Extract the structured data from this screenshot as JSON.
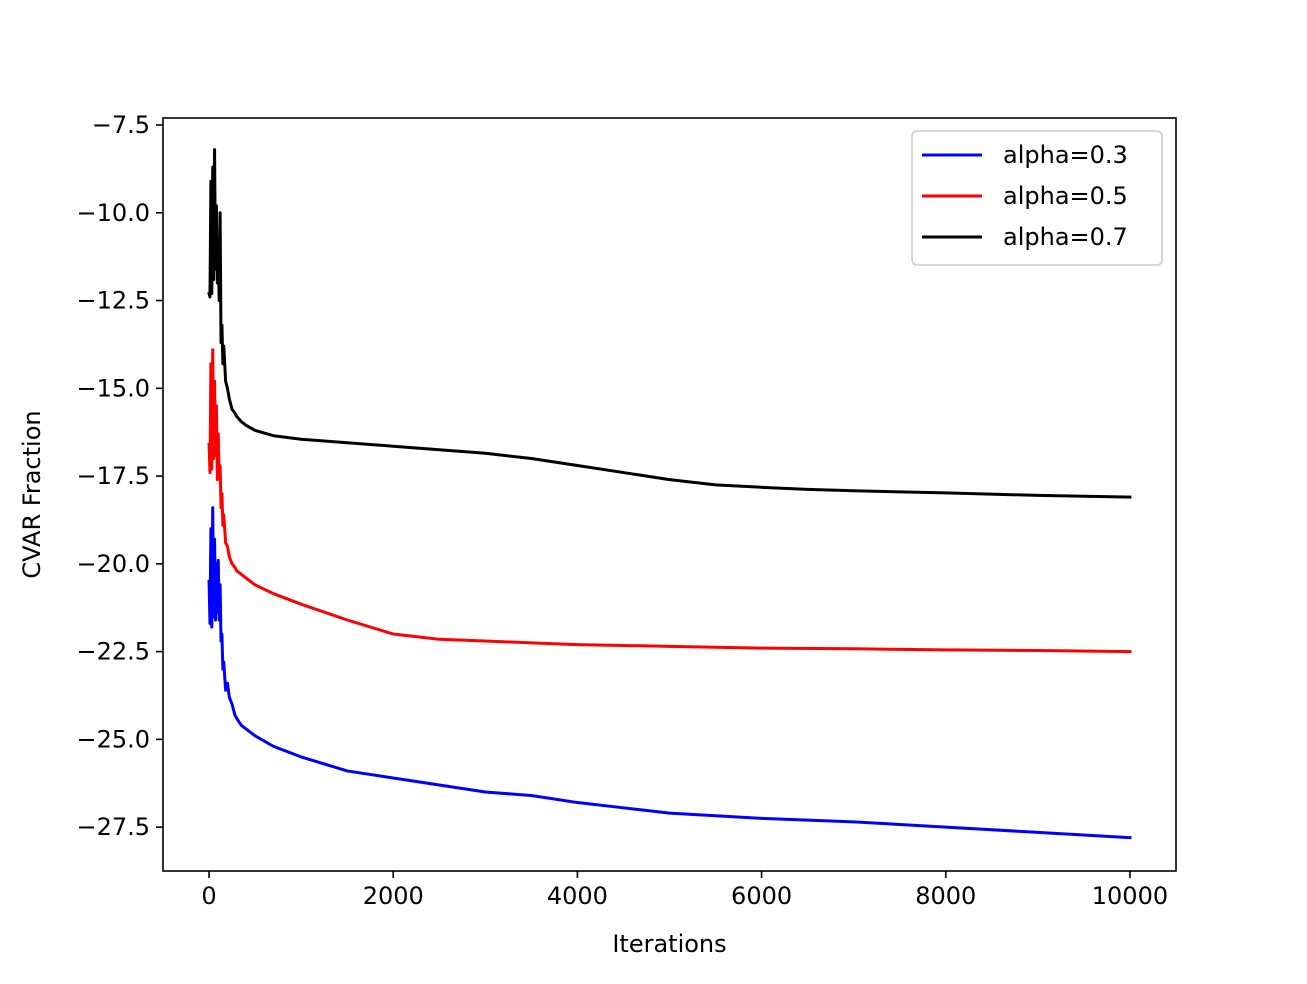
{
  "chart_data": {
    "type": "line",
    "title": "",
    "xlabel": "Iterations",
    "ylabel": "CVAR Fraction",
    "xlim": [
      -500,
      10500
    ],
    "ylim": [
      -28.75,
      -7.3
    ],
    "xticks": [
      0,
      2000,
      4000,
      6000,
      8000,
      10000
    ],
    "xtick_labels": [
      "0",
      "2000",
      "4000",
      "6000",
      "8000",
      "10000"
    ],
    "yticks": [
      -7.5,
      -10.0,
      -12.5,
      -15.0,
      -17.5,
      -20.0,
      -22.5,
      -25.0,
      -27.5
    ],
    "ytick_labels": [
      "−7.5",
      "−10.0",
      "−12.5",
      "−15.0",
      "−17.5",
      "−20.0",
      "−22.5",
      "−25.0",
      "−27.5"
    ],
    "grid": false,
    "legend_position": "top-right",
    "series": [
      {
        "name": "alpha=0.3",
        "color": "#0000ff",
        "x": [
          0,
          10,
          20,
          30,
          40,
          50,
          60,
          70,
          80,
          90,
          100,
          110,
          120,
          130,
          140,
          150,
          160,
          180,
          200,
          220,
          250,
          280,
          300,
          350,
          400,
          500,
          700,
          1000,
          1500,
          2000,
          2500,
          3000,
          3500,
          4000,
          4500,
          5000,
          6000,
          7000,
          8000,
          9000,
          10000
        ],
        "y": [
          -20.5,
          -21.7,
          -19.0,
          -21.8,
          -18.4,
          -21.5,
          -19.3,
          -21.6,
          -20.0,
          -21.4,
          -19.9,
          -21.6,
          -20.6,
          -22.2,
          -22.0,
          -23.0,
          -22.8,
          -23.6,
          -23.4,
          -23.8,
          -24.0,
          -24.3,
          -24.4,
          -24.6,
          -24.7,
          -24.9,
          -25.2,
          -25.5,
          -25.9,
          -26.1,
          -26.3,
          -26.5,
          -26.6,
          -26.8,
          -26.95,
          -27.1,
          -27.25,
          -27.35,
          -27.5,
          -27.65,
          -27.8
        ]
      },
      {
        "name": "alpha=0.5",
        "color": "#ff0000",
        "x": [
          0,
          10,
          20,
          30,
          40,
          50,
          60,
          70,
          80,
          90,
          100,
          110,
          120,
          130,
          140,
          150,
          160,
          180,
          200,
          220,
          250,
          280,
          300,
          350,
          400,
          500,
          700,
          1000,
          1500,
          2000,
          2500,
          3000,
          3500,
          4000,
          5000,
          6000,
          7000,
          8000,
          9000,
          10000
        ],
        "y": [
          -16.6,
          -17.4,
          -14.3,
          -17.3,
          -13.9,
          -17.0,
          -14.8,
          -16.9,
          -15.5,
          -17.6,
          -16.3,
          -17.5,
          -17.2,
          -18.4,
          -18.0,
          -18.9,
          -18.6,
          -19.4,
          -19.5,
          -19.8,
          -20.0,
          -20.1,
          -20.2,
          -20.3,
          -20.4,
          -20.6,
          -20.85,
          -21.15,
          -21.6,
          -22.0,
          -22.15,
          -22.2,
          -22.25,
          -22.3,
          -22.35,
          -22.4,
          -22.42,
          -22.45,
          -22.47,
          -22.5
        ]
      },
      {
        "name": "alpha=0.7",
        "color": "#000000",
        "x": [
          0,
          10,
          20,
          30,
          40,
          50,
          60,
          70,
          80,
          90,
          100,
          110,
          120,
          130,
          140,
          150,
          160,
          180,
          200,
          220,
          250,
          280,
          300,
          350,
          400,
          500,
          700,
          1000,
          1500,
          2000,
          2500,
          3000,
          3500,
          4000,
          4500,
          5000,
          5500,
          6000,
          6500,
          7000,
          8000,
          9000,
          10000
        ],
        "y": [
          -12.3,
          -12.4,
          -9.1,
          -12.3,
          -8.7,
          -11.9,
          -8.2,
          -11.6,
          -9.8,
          -12.0,
          -11.3,
          -12.5,
          -10.0,
          -13.7,
          -13.2,
          -14.3,
          -13.8,
          -14.8,
          -15.0,
          -15.3,
          -15.6,
          -15.7,
          -15.8,
          -15.95,
          -16.05,
          -16.2,
          -16.35,
          -16.45,
          -16.55,
          -16.65,
          -16.75,
          -16.85,
          -17.0,
          -17.2,
          -17.4,
          -17.6,
          -17.75,
          -17.82,
          -17.88,
          -17.92,
          -17.98,
          -18.05,
          -18.1
        ]
      }
    ]
  }
}
